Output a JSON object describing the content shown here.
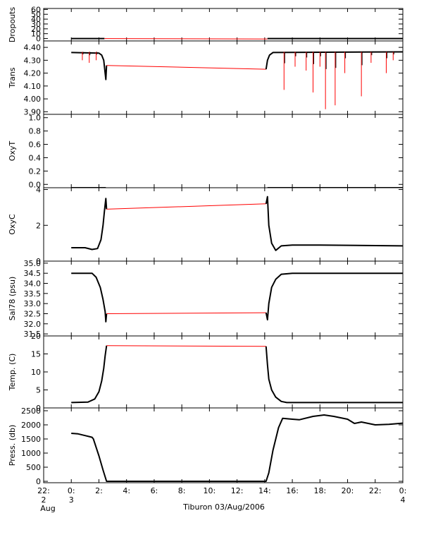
{
  "title": "Tiburon 03/Aug/2006",
  "colors": {
    "primary": "#000000",
    "secondary": "#ff0000",
    "background": "#ffffff"
  },
  "x_axis": {
    "range_hours": [
      -2,
      24
    ],
    "ticks": [
      {
        "hour": -2,
        "label": "22:",
        "sub1": "2",
        "sub2": "Aug"
      },
      {
        "hour": 0,
        "label": "0:",
        "sub1": "3",
        "sub2": ""
      },
      {
        "hour": 2,
        "label": "2:",
        "sub1": "",
        "sub2": ""
      },
      {
        "hour": 4,
        "label": "4:",
        "sub1": "",
        "sub2": ""
      },
      {
        "hour": 6,
        "label": "6:",
        "sub1": "",
        "sub2": ""
      },
      {
        "hour": 8,
        "label": "8:",
        "sub1": "",
        "sub2": ""
      },
      {
        "hour": 10,
        "label": "10:",
        "sub1": "",
        "sub2": ""
      },
      {
        "hour": 12,
        "label": "12:",
        "sub1": "",
        "sub2": ""
      },
      {
        "hour": 14,
        "label": "14:",
        "sub1": "",
        "sub2": ""
      },
      {
        "hour": 16,
        "label": "16:",
        "sub1": "",
        "sub2": ""
      },
      {
        "hour": 18,
        "label": "18:",
        "sub1": "",
        "sub2": ""
      },
      {
        "hour": 20,
        "label": "20:",
        "sub1": "",
        "sub2": ""
      },
      {
        "hour": 22,
        "label": "22:",
        "sub1": "",
        "sub2": ""
      },
      {
        "hour": 24,
        "label": "0:",
        "sub1": "4",
        "sub2": ""
      }
    ]
  },
  "chart_data": [
    {
      "type": "line",
      "ylabel": "Dropouts",
      "ylim": [
        -5,
        62
      ],
      "yticks": [
        0,
        10,
        20,
        30,
        40,
        50,
        60
      ],
      "yticklabels": [
        "0",
        "10",
        "20",
        "30",
        "40",
        "50",
        "60"
      ],
      "series": [
        {
          "color": "#000000",
          "points": [
            [
              0,
              0
            ],
            [
              2.4,
              0
            ]
          ]
        },
        {
          "color": "#ff0000",
          "points": [
            [
              2.4,
              0
            ],
            [
              14.2,
              -1
            ]
          ]
        },
        {
          "color": "#000000",
          "points": [
            [
              14.2,
              0
            ],
            [
              24,
              0
            ]
          ]
        }
      ],
      "spikes": []
    },
    {
      "type": "line",
      "ylabel": "Trans",
      "ylim": [
        3.88,
        4.45
      ],
      "yticks": [
        3.9,
        4.0,
        4.1,
        4.2,
        4.3,
        4.4
      ],
      "yticklabels": [
        "3.90",
        "4.00",
        "4.10",
        "4.20",
        "4.30",
        "4.40"
      ],
      "series": [
        {
          "color": "#000000",
          "points": [
            [
              0,
              4.36
            ],
            [
              2.0,
              4.355
            ],
            [
              2.2,
              4.34
            ],
            [
              2.35,
              4.3
            ],
            [
              2.45,
              4.2
            ],
            [
              2.5,
              4.15
            ],
            [
              2.55,
              4.26
            ]
          ]
        },
        {
          "color": "#ff0000",
          "points": [
            [
              2.55,
              4.26
            ],
            [
              14.1,
              4.23
            ]
          ]
        },
        {
          "color": "#000000",
          "points": [
            [
              14.1,
              4.23
            ],
            [
              14.2,
              4.3
            ],
            [
              14.35,
              4.34
            ],
            [
              14.6,
              4.36
            ],
            [
              24,
              4.365
            ]
          ]
        }
      ],
      "spikes": [
        {
          "hour": 0.8,
          "value": 4.3
        },
        {
          "hour": 1.3,
          "value": 4.28
        },
        {
          "hour": 1.8,
          "value": 4.3
        },
        {
          "hour": 15.4,
          "value": 4.07
        },
        {
          "hour": 16.2,
          "value": 4.25
        },
        {
          "hour": 17.0,
          "value": 4.22
        },
        {
          "hour": 17.5,
          "value": 4.05
        },
        {
          "hour": 18.0,
          "value": 4.25
        },
        {
          "hour": 18.4,
          "value": 3.92
        },
        {
          "hour": 19.1,
          "value": 3.95
        },
        {
          "hour": 19.8,
          "value": 4.2
        },
        {
          "hour": 21.0,
          "value": 4.02
        },
        {
          "hour": 21.7,
          "value": 4.28
        },
        {
          "hour": 22.8,
          "value": 4.2
        },
        {
          "hour": 23.3,
          "value": 4.3
        }
      ]
    },
    {
      "type": "line",
      "ylabel": "OxyT",
      "ylim": [
        -0.05,
        1.05
      ],
      "yticks": [
        0.0,
        0.2,
        0.4,
        0.6,
        0.8,
        1.0
      ],
      "yticklabels": [
        "0.0",
        "0.2",
        "0.4",
        "0.6",
        "0.8",
        "1.0"
      ],
      "series": [
        {
          "color": "#000000",
          "points": [
            [
              0,
              -0.05
            ],
            [
              2.5,
              -0.05
            ]
          ]
        },
        {
          "color": "#ff0000",
          "points": [
            [
              2.5,
              -0.05
            ],
            [
              14.2,
              -0.05
            ]
          ]
        },
        {
          "color": "#000000",
          "points": [
            [
              14.2,
              -0.05
            ],
            [
              24,
              -0.05
            ]
          ]
        }
      ],
      "spikes": []
    },
    {
      "type": "line",
      "ylabel": "OxyC",
      "ylim": [
        0,
        4.1
      ],
      "yticks": [
        0,
        2,
        4
      ],
      "yticklabels": [
        "0",
        "2",
        "4"
      ],
      "series": [
        {
          "color": "#000000",
          "points": [
            [
              0,
              0.75
            ],
            [
              1.0,
              0.75
            ],
            [
              1.5,
              0.65
            ],
            [
              1.9,
              0.7
            ],
            [
              2.15,
              1.2
            ],
            [
              2.3,
              2.0
            ],
            [
              2.4,
              2.8
            ],
            [
              2.5,
              3.5
            ],
            [
              2.55,
              2.9
            ]
          ]
        },
        {
          "color": "#ff0000",
          "points": [
            [
              2.55,
              2.9
            ],
            [
              14.1,
              3.2
            ]
          ]
        },
        {
          "color": "#000000",
          "points": [
            [
              14.1,
              3.2
            ],
            [
              14.2,
              3.6
            ],
            [
              14.3,
              2.0
            ],
            [
              14.5,
              1.0
            ],
            [
              14.8,
              0.6
            ],
            [
              15.2,
              0.85
            ],
            [
              16,
              0.9
            ],
            [
              18,
              0.9
            ],
            [
              24,
              0.85
            ]
          ]
        }
      ],
      "spikes": []
    },
    {
      "type": "line",
      "ylabel": "Sal78 (psu)",
      "ylim": [
        31.4,
        35.1
      ],
      "yticks": [
        31.5,
        32.0,
        32.5,
        33.0,
        33.5,
        34.0,
        34.5,
        35.0
      ],
      "yticklabels": [
        "31.5",
        "32.0",
        "32.5",
        "33.0",
        "33.5",
        "34.0",
        "34.5",
        "35.0"
      ],
      "series": [
        {
          "color": "#000000",
          "points": [
            [
              0,
              34.5
            ],
            [
              1.5,
              34.5
            ],
            [
              1.8,
              34.3
            ],
            [
              2.1,
              33.8
            ],
            [
              2.3,
              33.2
            ],
            [
              2.45,
              32.6
            ],
            [
              2.5,
              32.1
            ],
            [
              2.55,
              32.5
            ]
          ]
        },
        {
          "color": "#ff0000",
          "points": [
            [
              2.55,
              32.5
            ],
            [
              14.1,
              32.55
            ]
          ]
        },
        {
          "color": "#000000",
          "points": [
            [
              14.1,
              32.55
            ],
            [
              14.2,
              32.2
            ],
            [
              14.3,
              33.0
            ],
            [
              14.5,
              33.8
            ],
            [
              14.8,
              34.2
            ],
            [
              15.2,
              34.45
            ],
            [
              16,
              34.5
            ],
            [
              24,
              34.5
            ]
          ]
        }
      ],
      "spikes": []
    },
    {
      "type": "line",
      "ylabel": "Temp. (C)",
      "ylim": [
        0,
        20
      ],
      "yticks": [
        0,
        5,
        10,
        15,
        20
      ],
      "yticklabels": [
        "0",
        "5",
        "10",
        "15",
        "20"
      ],
      "series": [
        {
          "color": "#000000",
          "points": [
            [
              0,
              1.5
            ],
            [
              1.2,
              1.6
            ],
            [
              1.7,
              2.5
            ],
            [
              2.0,
              4.5
            ],
            [
              2.2,
              7.5
            ],
            [
              2.35,
              11
            ],
            [
              2.45,
              14.5
            ],
            [
              2.55,
              17.3
            ]
          ]
        },
        {
          "color": "#ff0000",
          "points": [
            [
              2.55,
              17.3
            ],
            [
              14.1,
              17.1
            ]
          ]
        },
        {
          "color": "#000000",
          "points": [
            [
              14.1,
              17.1
            ],
            [
              14.2,
              12
            ],
            [
              14.3,
              8
            ],
            [
              14.5,
              5
            ],
            [
              14.8,
              3
            ],
            [
              15.2,
              1.8
            ],
            [
              15.6,
              1.5
            ],
            [
              24,
              1.5
            ]
          ]
        }
      ],
      "spikes": []
    },
    {
      "type": "line",
      "ylabel": "Press. (db)",
      "ylim": [
        -50,
        2600
      ],
      "yticks": [
        0,
        500,
        1000,
        1500,
        2000,
        2500
      ],
      "yticklabels": [
        "0",
        "500",
        "1000",
        "1500",
        "2000",
        "2500"
      ],
      "series": [
        {
          "color": "#000000",
          "points": [
            [
              0,
              1700
            ],
            [
              0.5,
              1680
            ],
            [
              1.0,
              1620
            ],
            [
              1.5,
              1560
            ],
            [
              1.6,
              1500
            ],
            [
              2.0,
              900
            ],
            [
              2.3,
              400
            ],
            [
              2.55,
              0
            ],
            [
              14.1,
              0
            ],
            [
              14.3,
              300
            ],
            [
              14.6,
              1100
            ],
            [
              15.0,
              1900
            ],
            [
              15.3,
              2230
            ],
            [
              16,
              2200
            ],
            [
              16.5,
              2180
            ],
            [
              17.5,
              2300
            ],
            [
              18.3,
              2350
            ],
            [
              19.0,
              2300
            ],
            [
              20.0,
              2200
            ],
            [
              20.5,
              2050
            ],
            [
              21.0,
              2100
            ],
            [
              21.5,
              2050
            ],
            [
              22.0,
              2000
            ],
            [
              23.0,
              2020
            ],
            [
              24,
              2060
            ]
          ]
        }
      ],
      "spikes": []
    }
  ]
}
